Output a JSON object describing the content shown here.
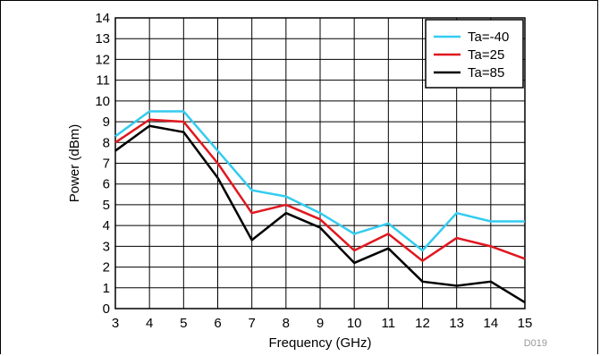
{
  "chart_data": {
    "type": "line",
    "title": "",
    "xlabel": "Frequency (GHz)",
    "ylabel": "Power (dBm)",
    "xlim": [
      3,
      15
    ],
    "ylim": [
      0,
      14
    ],
    "x_ticks": [
      "3",
      "4",
      "5",
      "6",
      "7",
      "8",
      "9",
      "10",
      "11",
      "12",
      "13",
      "14",
      "15"
    ],
    "y_ticks": [
      "0",
      "1",
      "2",
      "3",
      "4",
      "5",
      "6",
      "7",
      "8",
      "9",
      "10",
      "11",
      "12",
      "13",
      "14"
    ],
    "x": [
      3,
      4,
      5,
      6,
      7,
      8,
      9,
      10,
      11,
      12,
      13,
      14,
      15
    ],
    "series": [
      {
        "name": "Ta=-40",
        "color": "#33ccf0",
        "values": [
          8.3,
          9.5,
          9.5,
          7.6,
          5.7,
          5.4,
          4.6,
          3.6,
          4.1,
          2.8,
          4.6,
          4.2,
          4.2
        ]
      },
      {
        "name": "Ta=25",
        "color": "#e0171f",
        "values": [
          8.0,
          9.1,
          9.0,
          7.0,
          4.6,
          5.0,
          4.3,
          2.8,
          3.6,
          2.3,
          3.4,
          3.0,
          2.4
        ]
      },
      {
        "name": "Ta=85",
        "color": "#000000",
        "values": [
          7.6,
          8.8,
          8.5,
          6.3,
          3.3,
          4.6,
          3.9,
          2.2,
          2.9,
          1.3,
          1.1,
          1.3,
          0.3
        ]
      }
    ],
    "grid": true,
    "legend_position": "top-right"
  },
  "figure_code": "D019"
}
